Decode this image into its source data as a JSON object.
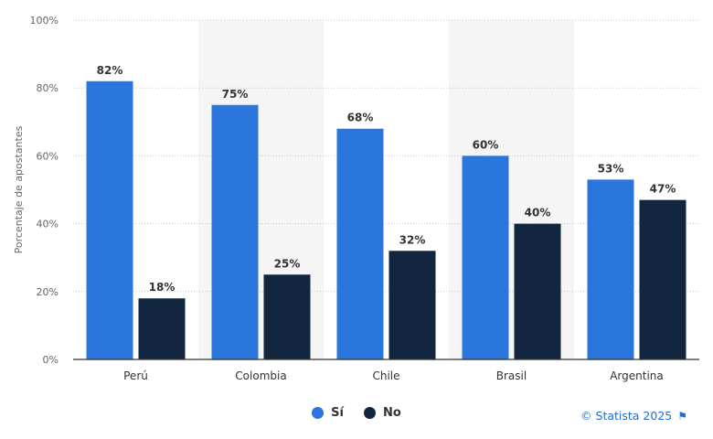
{
  "chart_data": {
    "type": "bar",
    "categories": [
      "Perú",
      "Colombia",
      "Chile",
      "Brasil",
      "Argentina"
    ],
    "series": [
      {
        "name": "Sí",
        "values": [
          82,
          75,
          68,
          60,
          53
        ],
        "labels": [
          "82%",
          "75%",
          "68%",
          "60%",
          "53%"
        ]
      },
      {
        "name": "No",
        "values": [
          18,
          25,
          32,
          40,
          47
        ],
        "labels": [
          "18%",
          "25%",
          "32%",
          "40%",
          "47%"
        ]
      }
    ],
    "ylabel": "Porcentaje de apostantes",
    "ylim": [
      0,
      100
    ],
    "yticks": [
      0,
      20,
      40,
      60,
      80,
      100
    ],
    "ytick_labels": [
      "0%",
      "20%",
      "40%",
      "60%",
      "80%",
      "100%"
    ],
    "grid": true,
    "legend_position": "bottom-center"
  },
  "colors": {
    "si": "#2a76dd",
    "no": "#12263f",
    "band": "#f5f5f5",
    "grid": "#c9c9c9"
  },
  "legend": [
    {
      "label": "Sí",
      "color": "#2a76dd"
    },
    {
      "label": "No",
      "color": "#12263f"
    }
  ],
  "credit": {
    "text": "© Statista 2025",
    "icon": "flag-icon"
  }
}
